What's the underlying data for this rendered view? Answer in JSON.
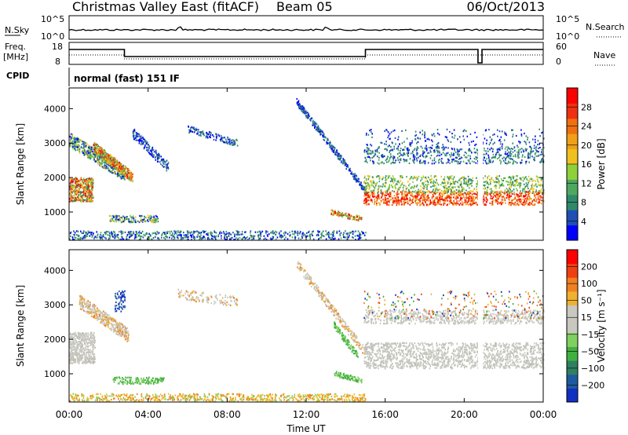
{
  "header": {
    "title": "Christmas Valley East (fitACF)",
    "beam": "Beam 05",
    "date": "06/Oct/2013"
  },
  "top_panels": {
    "nsky_label": "N.Sky",
    "nsky_ticks": [
      "10^5",
      "10^0"
    ],
    "nsearch_label": "N.Search",
    "nsearch_ticks": [
      "10^5",
      "10^0"
    ],
    "freq_label_1": "Freq.",
    "freq_label_2": "[MHz]",
    "freq_ticks": [
      "18",
      "8"
    ],
    "nave_label": "Nave",
    "nave_ticks": [
      "60",
      "0"
    ],
    "cpid_label": "CPID",
    "cpid_value": "normal (fast) 151 IF"
  },
  "chart_data": [
    {
      "type": "heatmap",
      "name": "power",
      "ylabel": "Slant Range [km]",
      "yticks": [
        "4000",
        "3000",
        "2000",
        "1000"
      ],
      "ytick_values": [
        4000,
        3000,
        2000,
        1000
      ],
      "ylim": [
        180,
        4600
      ],
      "xlim": [
        0,
        24
      ],
      "colorbar_label": "Power [dB]",
      "colorbar_ticks": [
        "28",
        "24",
        "20",
        "16",
        "12",
        "8",
        "4"
      ],
      "colorbar_colors": [
        "#0000ff",
        "#1f4fb4",
        "#2f8a6a",
        "#4fa860",
        "#8ed13a",
        "#f0c020",
        "#f0a018",
        "#f07010",
        "#f03010",
        "#ff0000"
      ]
    },
    {
      "type": "heatmap",
      "name": "velocity",
      "ylabel": "Slant Range [km]",
      "yticks": [
        "4000",
        "3000",
        "2000",
        "1000"
      ],
      "ytick_values": [
        4000,
        3000,
        2000,
        1000
      ],
      "ylim": [
        180,
        4600
      ],
      "xlim": [
        0,
        24
      ],
      "colorbar_label": "Velocity [m s⁻¹]",
      "colorbar_ticks": [
        "200",
        "100",
        "50",
        "15",
        "−15",
        "−50",
        "−100",
        "−200"
      ],
      "colorbar_colors": [
        "#1030c0",
        "#1f5aa0",
        "#2f8060",
        "#40b040",
        "#80d060",
        "#c8c8c0",
        "#c8c8c0",
        "#f0b030",
        "#f08020",
        "#f04010",
        "#ff0000"
      ]
    }
  ],
  "x_axis": {
    "label": "Time UT",
    "ticks": [
      "00:00",
      "04:00",
      "08:00",
      "12:00",
      "16:00",
      "20:00",
      "00:00"
    ],
    "tick_hours": [
      0,
      4,
      8,
      12,
      16,
      20,
      24
    ]
  }
}
